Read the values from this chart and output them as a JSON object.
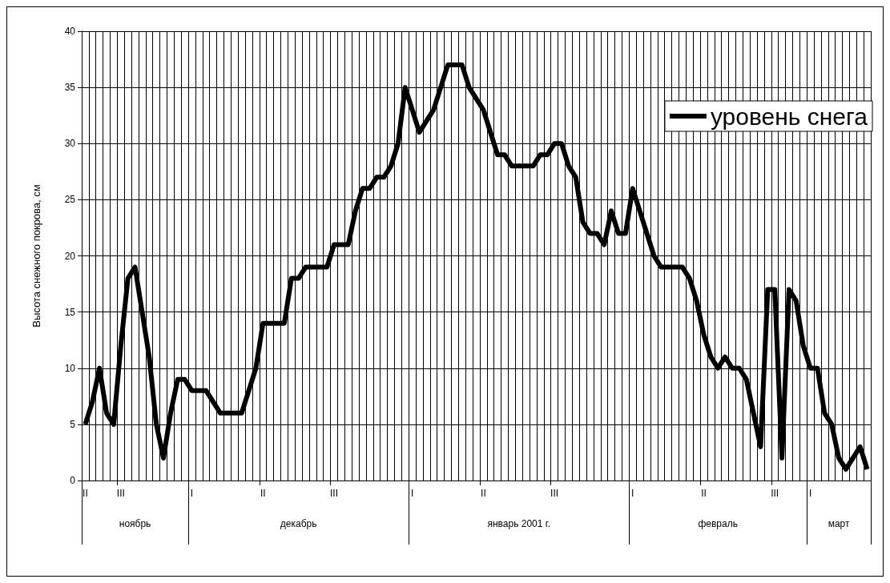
{
  "chart_data": {
    "type": "line",
    "ylabel": "Высота снежного покрова, см",
    "categories": [
      "II",
      null,
      null,
      null,
      null,
      "III",
      null,
      null,
      null,
      null,
      null,
      null,
      null,
      null,
      null,
      "I",
      null,
      null,
      null,
      null,
      null,
      null,
      null,
      null,
      null,
      "II",
      null,
      null,
      null,
      null,
      null,
      null,
      null,
      null,
      null,
      "III",
      null,
      null,
      null,
      null,
      null,
      null,
      null,
      null,
      null,
      null,
      "I",
      null,
      null,
      null,
      null,
      null,
      null,
      null,
      null,
      null,
      "II",
      null,
      null,
      null,
      null,
      null,
      null,
      null,
      null,
      null,
      "III",
      null,
      null,
      null,
      null,
      null,
      null,
      null,
      null,
      null,
      null,
      "I",
      null,
      null,
      null,
      null,
      null,
      null,
      null,
      null,
      null,
      "II",
      null,
      null,
      null,
      null,
      null,
      null,
      null,
      null,
      null,
      "III",
      null,
      null,
      null,
      null,
      "I",
      null,
      null,
      null,
      null,
      null,
      null,
      null,
      null
    ],
    "series": [
      {
        "name": "уровень снега",
        "color": "#000000",
        "values": [
          5,
          7,
          10,
          6,
          5,
          12,
          18,
          19,
          15,
          11,
          5,
          2,
          6,
          9,
          9,
          8,
          8,
          8,
          7,
          6,
          6,
          6,
          6,
          8,
          10,
          14,
          14,
          14,
          14,
          18,
          18,
          19,
          19,
          19,
          19,
          21,
          21,
          21,
          24,
          26,
          26,
          27,
          27,
          28,
          30,
          35,
          33,
          31,
          32,
          33,
          35,
          37,
          37,
          37,
          35,
          34,
          33,
          31,
          29,
          29,
          28,
          28,
          28,
          28,
          29,
          29,
          30,
          30,
          28,
          27,
          23,
          22,
          22,
          21,
          24,
          22,
          22,
          26,
          24,
          22,
          20,
          19,
          19,
          19,
          19,
          18,
          16,
          13,
          11,
          10,
          11,
          10,
          10,
          9,
          6,
          3,
          17,
          17,
          2,
          17,
          16,
          12,
          10,
          10,
          6,
          5,
          2,
          1,
          2,
          3,
          1
        ]
      }
    ],
    "annotations": [
      "ноябрь",
      "декабрь",
      "январь 2001 г.",
      "февраль",
      "март"
    ],
    "ylim": [
      0,
      40
    ],
    "yticks": [
      0,
      5,
      10,
      15,
      20,
      25,
      30,
      35,
      40
    ],
    "grid": true,
    "legend": "top right",
    "marker": "none",
    "line_style": "solid"
  }
}
